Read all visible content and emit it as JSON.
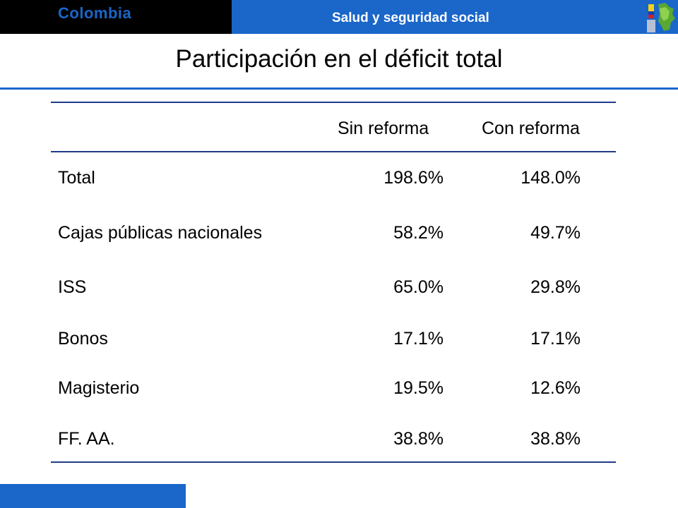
{
  "header": {
    "brand": "Colombia",
    "section": "Salud y seguridad social",
    "accent_color": "#1a66c9",
    "logo_icon": "colombia-map-flag-icon"
  },
  "page": {
    "title": "Participación en el déficit total"
  },
  "table": {
    "columns": [
      "",
      "Sin reforma",
      "Con reforma"
    ],
    "rows": [
      {
        "label": "Total",
        "sin": "198.6%",
        "con": "148.0%"
      },
      {
        "label": "Cajas públicas nacionales",
        "sin": "58.2%",
        "con": "49.7%"
      },
      {
        "label": "ISS",
        "sin": "65.0%",
        "con": "29.8%"
      },
      {
        "label": "Bonos",
        "sin": "17.1%",
        "con": "17.1%"
      },
      {
        "label": "Magisterio",
        "sin": "19.5%",
        "con": "12.6%"
      },
      {
        "label": "FF. AA.",
        "sin": "38.8%",
        "con": "38.8%"
      }
    ]
  }
}
